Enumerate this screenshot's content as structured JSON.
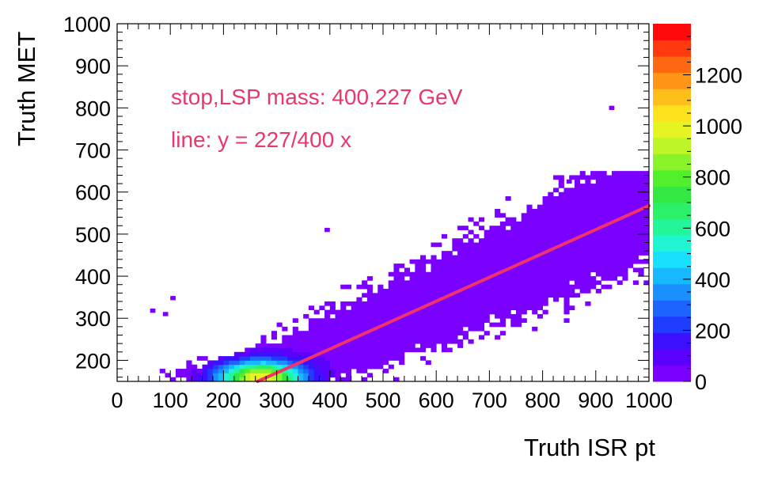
{
  "chart_data": {
    "type": "heatmap",
    "xlabel": "Truth ISR pt",
    "ylabel": "Truth MET",
    "xlim": [
      0,
      1000
    ],
    "ylim": [
      150,
      1000
    ],
    "x_ticks": [
      "0",
      "100",
      "200",
      "300",
      "400",
      "500",
      "600",
      "700",
      "800",
      "900",
      "1000"
    ],
    "y_ticks": [
      "200",
      "300",
      "400",
      "500",
      "600",
      "700",
      "800",
      "900",
      "1000"
    ],
    "colorbar": {
      "range": [
        0,
        1400
      ],
      "ticks": [
        "0",
        "200",
        "400",
        "600",
        "800",
        "1000",
        "1200"
      ]
    },
    "annotations": [
      {
        "text": "stop,LSP mass: 400,227 GeV",
        "color": "#e8386a"
      },
      {
        "text": "line: y = 227/400 x",
        "color": "#e8386a"
      }
    ],
    "line": {
      "slope": 0.5675,
      "x_range": [
        264,
        1000
      ],
      "color": "#f0336a"
    },
    "distribution": {
      "ridge_slope": 0.5675,
      "peak_x": 270,
      "peak_y": 158,
      "peak_count": 1000,
      "x_range": [
        0,
        1000
      ],
      "y_range": [
        150,
        650
      ]
    },
    "outliers": [
      [
        925,
        800
      ],
      [
        920,
        495
      ],
      [
        390,
        510
      ],
      [
        100,
        348
      ],
      [
        62,
        318
      ],
      [
        86,
        310
      ],
      [
        150,
        175
      ],
      [
        845,
        625
      ]
    ]
  }
}
